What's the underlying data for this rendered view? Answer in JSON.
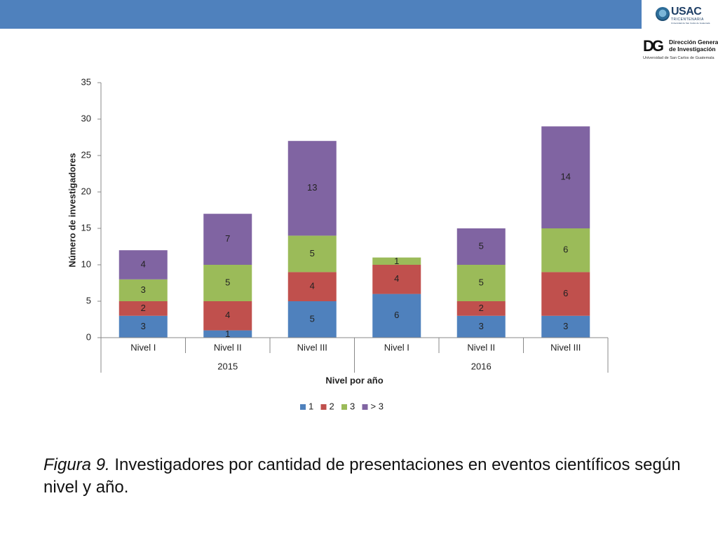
{
  "header": {
    "bar_color": "#4f81bd"
  },
  "logos": {
    "usac": {
      "name": "USAC",
      "subtitle": "TRICENTENARIA",
      "tagline": "Universidad de San Carlos de Guatemala"
    },
    "dg": {
      "mark": "DG",
      "line1": "Dirección General",
      "line2": "de Investigación",
      "line3": "Universidad de San Carlos de Guatemala"
    }
  },
  "chart_data": {
    "type": "bar",
    "stacked": true,
    "categories": [
      "Nivel I",
      "Nivel II",
      "Nivel III",
      "Nivel I",
      "Nivel II",
      "Nivel III"
    ],
    "groups": [
      {
        "label": "2015",
        "span": [
          0,
          2
        ]
      },
      {
        "label": "2016",
        "span": [
          3,
          5
        ]
      }
    ],
    "series": [
      {
        "name": "1",
        "color": "#4f81bd",
        "values": [
          3,
          1,
          5,
          6,
          3,
          3
        ]
      },
      {
        "name": "2",
        "color": "#c0504d",
        "values": [
          2,
          4,
          4,
          4,
          2,
          6
        ]
      },
      {
        "name": "3",
        "color": "#9bbb59",
        "values": [
          3,
          5,
          5,
          1,
          5,
          6
        ]
      },
      {
        "name": "> 3",
        "color": "#8064a2",
        "values": [
          4,
          7,
          13,
          0,
          5,
          14
        ]
      }
    ],
    "xlabel": "Nivel por año",
    "ylabel": "Número de investigadores",
    "ylim": [
      0,
      35
    ],
    "yticks": [
      0,
      5,
      10,
      15,
      20,
      25,
      30,
      35
    ],
    "grid": false,
    "legend": "bottom"
  },
  "caption": {
    "label": "Figura 9.",
    "text": " Investigadores por cantidad de presentaciones en eventos científicos según nivel y año."
  }
}
